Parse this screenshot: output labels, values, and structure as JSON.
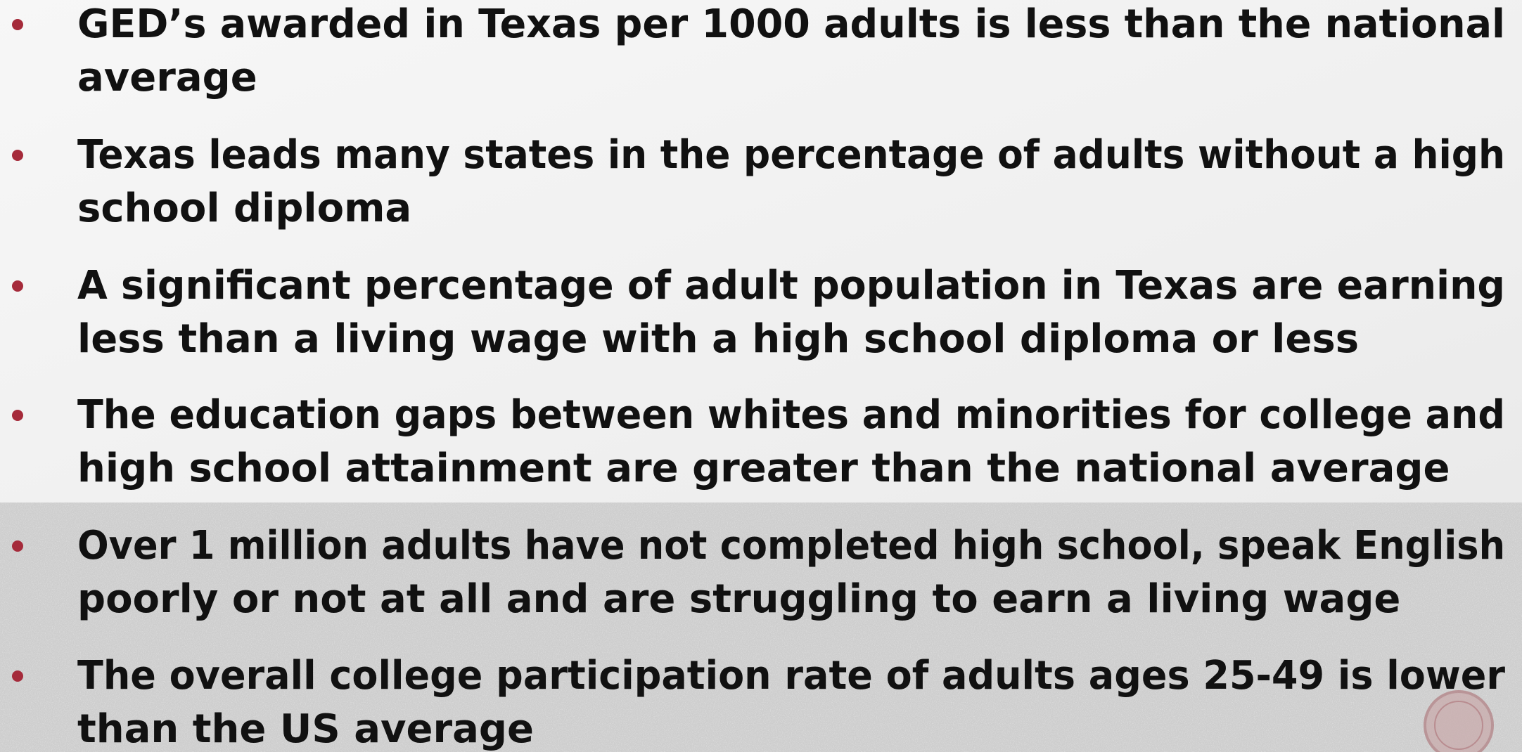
{
  "bullets": [
    [
      "GED’s awarded in Texas per 1000 adults is less than the national",
      "average"
    ],
    [
      "Texas leads many states in the percentage of adults without a high",
      "school diploma"
    ],
    [
      "A significant percentage of adult population in Texas are earning",
      "less than a living wage with a high school diploma or less"
    ],
    [
      "The education gaps between whites and minorities for college and",
      "high school attainment are greater than the national average"
    ],
    [
      "Over 1 million adults have not completed high school, speak English",
      "poorly or not at all and are struggling to earn a living wage"
    ],
    [
      "The overall college participation rate of adults ages 25-49 is lower",
      "than the US average"
    ]
  ]
}
